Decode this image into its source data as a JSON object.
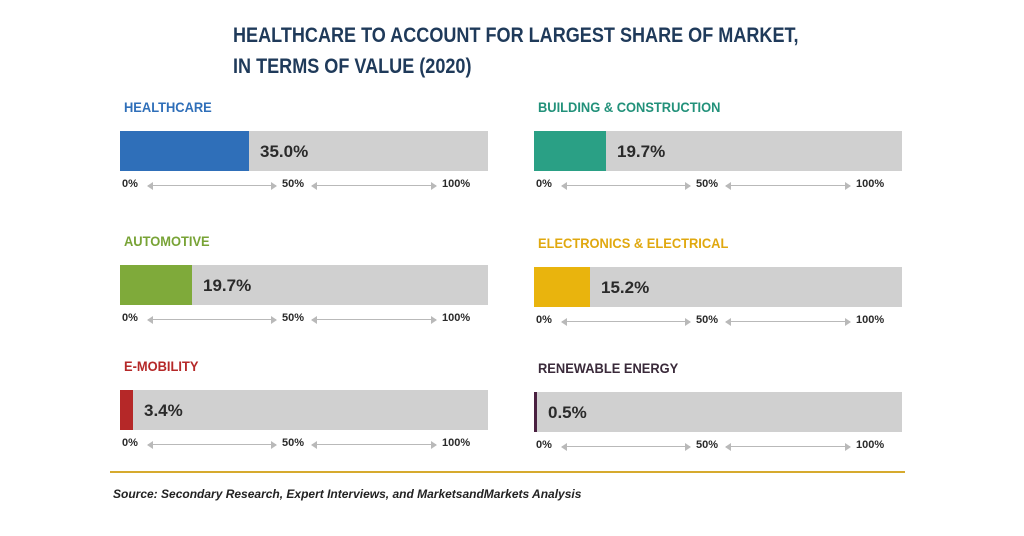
{
  "title_lines": [
    "HEALTHCARE TO ACCOUNT FOR LARGEST SHARE OF MARKET,",
    "IN TERMS OF VALUE (2020)"
  ],
  "axis_ticks": [
    "0%",
    "50%",
    "100%"
  ],
  "source": "Source: Secondary Research, Expert Interviews, and MarketsandMarkets Analysis",
  "colors": {
    "track": "#d0d0d0",
    "title": "#1f3a5a",
    "divider": "#d6aa2e"
  },
  "chart_data": {
    "type": "bar",
    "title": "HEALTHCARE TO ACCOUNT FOR LARGEST SHARE OF MARKET, IN TERMS OF VALUE (2020)",
    "xlim": [
      0,
      100
    ],
    "categories": [
      "HEALTHCARE",
      "BUILDING & CONSTRUCTION",
      "AUTOMOTIVE",
      "ELECTRONICS & ELECTRICAL",
      "E-MOBILITY",
      "RENEWABLE ENERGY"
    ],
    "values": [
      35.0,
      19.7,
      19.7,
      15.2,
      3.4,
      0.5
    ],
    "value_labels": [
      "35.0%",
      "19.7%",
      "19.7%",
      "15.2%",
      "3.4%",
      "0.5%"
    ],
    "bar_colors": [
      "#2f6fb9",
      "#2aa085",
      "#7faa3a",
      "#e9b40d",
      "#b52828",
      "#4a2040"
    ],
    "label_colors": [
      "#2f6fb9",
      "#22917a",
      "#78a336",
      "#e0a80f",
      "#b52828",
      "#3a2a3a"
    ]
  }
}
